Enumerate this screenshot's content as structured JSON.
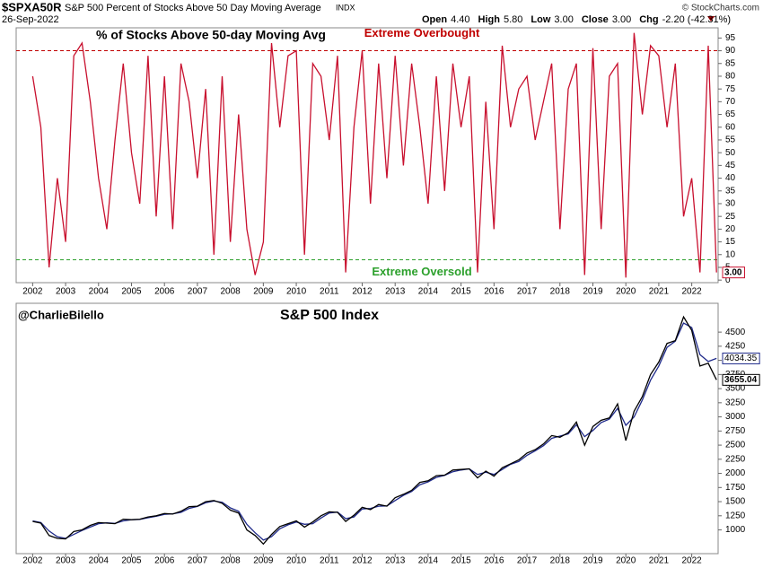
{
  "header": {
    "symbol": "$SPXA50R",
    "description": "S&P 500 Percent of Stocks Above 50 Day Moving Average",
    "exchange": "INDX",
    "date": "26-Sep-2022",
    "quote": [
      [
        "Open",
        "4.40"
      ],
      [
        "High",
        "5.80"
      ],
      [
        "Low",
        "3.00"
      ],
      [
        "Close",
        "3.00"
      ],
      [
        "Chg",
        "-2.20 (-42.31%)"
      ]
    ],
    "copyright": "© StockCharts.com"
  },
  "chart_data": [
    {
      "type": "line",
      "title": "% of Stocks Above 50-day Moving Avg",
      "xlim": [
        2001.5,
        2022.8
      ],
      "xticks": [
        2002,
        2003,
        2004,
        2005,
        2006,
        2007,
        2008,
        2009,
        2010,
        2011,
        2012,
        2013,
        2014,
        2015,
        2016,
        2017,
        2018,
        2019,
        2020,
        2021,
        2022
      ],
      "ylim": [
        -1,
        99
      ],
      "yticks": [
        0,
        5,
        10,
        15,
        20,
        25,
        30,
        35,
        40,
        45,
        50,
        55,
        60,
        65,
        70,
        75,
        80,
        85,
        90,
        95
      ],
      "hlines": [
        {
          "value": 90,
          "color": "#c00000",
          "label": "Extreme Overbought"
        },
        {
          "value": 8,
          "color": "#2ca02c",
          "label": "Extreme Oversold"
        }
      ],
      "x": [
        2002,
        2002.25,
        2002.5,
        2002.75,
        2003,
        2003.25,
        2003.5,
        2003.75,
        2004,
        2004.25,
        2004.5,
        2004.75,
        2005,
        2005.25,
        2005.5,
        2005.75,
        2006,
        2006.25,
        2006.5,
        2006.75,
        2007,
        2007.25,
        2007.5,
        2007.75,
        2008,
        2008.25,
        2008.5,
        2008.75,
        2009,
        2009.25,
        2009.5,
        2009.75,
        2010,
        2010.25,
        2010.5,
        2010.75,
        2011,
        2011.25,
        2011.5,
        2011.75,
        2012,
        2012.25,
        2012.5,
        2012.75,
        2013,
        2013.25,
        2013.5,
        2013.75,
        2014,
        2014.25,
        2014.5,
        2014.75,
        2015,
        2015.25,
        2015.5,
        2015.75,
        2016,
        2016.25,
        2016.5,
        2016.75,
        2017,
        2017.25,
        2017.5,
        2017.75,
        2018,
        2018.25,
        2018.5,
        2018.75,
        2019,
        2019.25,
        2019.5,
        2019.75,
        2020,
        2020.25,
        2020.5,
        2020.75,
        2021,
        2021.25,
        2021.5,
        2021.75,
        2022,
        2022.25,
        2022.5,
        2022.75
      ],
      "series": [
        {
          "color": "#c8102e",
          "end_label": "3.00",
          "values": [
            80,
            60,
            5,
            40,
            15,
            88,
            93,
            70,
            40,
            20,
            55,
            85,
            50,
            30,
            88,
            25,
            80,
            20,
            85,
            70,
            40,
            75,
            10,
            80,
            15,
            65,
            20,
            2,
            15,
            93,
            60,
            88,
            90,
            10,
            85,
            80,
            55,
            88,
            3,
            60,
            90,
            30,
            85,
            40,
            88,
            45,
            85,
            60,
            30,
            80,
            35,
            85,
            60,
            80,
            3,
            70,
            20,
            92,
            60,
            75,
            80,
            55,
            70,
            85,
            20,
            75,
            85,
            2,
            91,
            20,
            80,
            85,
            1,
            97,
            65,
            92,
            88,
            60,
            85,
            25,
            40,
            3,
            92,
            3
          ]
        }
      ]
    },
    {
      "type": "line",
      "title": "S&P 500 Index",
      "annotation": "@CharlieBilello",
      "xlim": [
        2001.5,
        2022.8
      ],
      "xticks": [
        2002,
        2003,
        2004,
        2005,
        2006,
        2007,
        2008,
        2009,
        2010,
        2011,
        2012,
        2013,
        2014,
        2015,
        2016,
        2017,
        2018,
        2019,
        2020,
        2021,
        2022
      ],
      "ylim": [
        580,
        5010
      ],
      "yticks": [
        1000,
        1250,
        1500,
        1750,
        2000,
        2250,
        2500,
        2750,
        3000,
        3250,
        3500,
        3750,
        4000,
        4250,
        4500
      ],
      "x": [
        2002,
        2002.25,
        2002.5,
        2002.75,
        2003,
        2003.25,
        2003.5,
        2003.75,
        2004,
        2004.25,
        2004.5,
        2004.75,
        2005,
        2005.25,
        2005.5,
        2005.75,
        2006,
        2006.25,
        2006.5,
        2006.75,
        2007,
        2007.25,
        2007.5,
        2007.75,
        2008,
        2008.25,
        2008.5,
        2008.75,
        2009,
        2009.25,
        2009.5,
        2009.75,
        2010,
        2010.25,
        2010.5,
        2010.75,
        2011,
        2011.25,
        2011.5,
        2011.75,
        2012,
        2012.25,
        2012.5,
        2012.75,
        2013,
        2013.25,
        2013.5,
        2013.75,
        2014,
        2014.25,
        2014.5,
        2014.75,
        2015,
        2015.25,
        2015.5,
        2015.75,
        2016,
        2016.25,
        2016.5,
        2016.75,
        2017,
        2017.25,
        2017.5,
        2017.75,
        2018,
        2018.25,
        2018.5,
        2018.75,
        2019,
        2019.25,
        2019.5,
        2019.75,
        2020,
        2020.25,
        2020.5,
        2020.75,
        2021,
        2021.25,
        2021.5,
        2021.75,
        2022,
        2022.25,
        2022.5,
        2022.75
      ],
      "series": [
        {
          "color": "#1f2a8a",
          "values": [
            1160,
            1130,
            980,
            880,
            850,
            920,
            990,
            1050,
            1110,
            1125,
            1115,
            1160,
            1180,
            1185,
            1215,
            1240,
            1275,
            1285,
            1310,
            1380,
            1415,
            1480,
            1510,
            1490,
            1390,
            1330,
            1100,
            950,
            820,
            880,
            1020,
            1090,
            1140,
            1100,
            1110,
            1210,
            1300,
            1315,
            1200,
            1230,
            1370,
            1380,
            1420,
            1425,
            1520,
            1610,
            1680,
            1800,
            1850,
            1930,
            1965,
            2030,
            2060,
            2080,
            1980,
            2020,
            1980,
            2070,
            2160,
            2210,
            2320,
            2400,
            2490,
            2620,
            2660,
            2700,
            2860,
            2650,
            2760,
            2900,
            2960,
            3150,
            2850,
            3000,
            3300,
            3650,
            3900,
            4230,
            4340,
            4660,
            4580,
            4100,
            3980,
            4034.35
          ]
        },
        {
          "color": "#000000",
          "values": [
            1150,
            1120,
            900,
            850,
            840,
            970,
            1000,
            1080,
            1130,
            1120,
            1110,
            1190,
            1180,
            1190,
            1230,
            1250,
            1290,
            1280,
            1330,
            1410,
            1420,
            1500,
            1520,
            1470,
            1350,
            1300,
            1000,
            900,
            750,
            920,
            1060,
            1110,
            1160,
            1050,
            1140,
            1250,
            1320,
            1310,
            1150,
            1260,
            1400,
            1360,
            1450,
            1420,
            1570,
            1630,
            1700,
            1840,
            1870,
            1960,
            1970,
            2060,
            2070,
            2080,
            1920,
            2040,
            1950,
            2100,
            2170,
            2240,
            2360,
            2420,
            2520,
            2670,
            2640,
            2720,
            2910,
            2500,
            2830,
            2940,
            2980,
            3230,
            2580,
            3100,
            3360,
            3750,
            3970,
            4300,
            4350,
            4770,
            4530,
            3900,
            3950,
            3655.04
          ]
        }
      ]
    }
  ]
}
